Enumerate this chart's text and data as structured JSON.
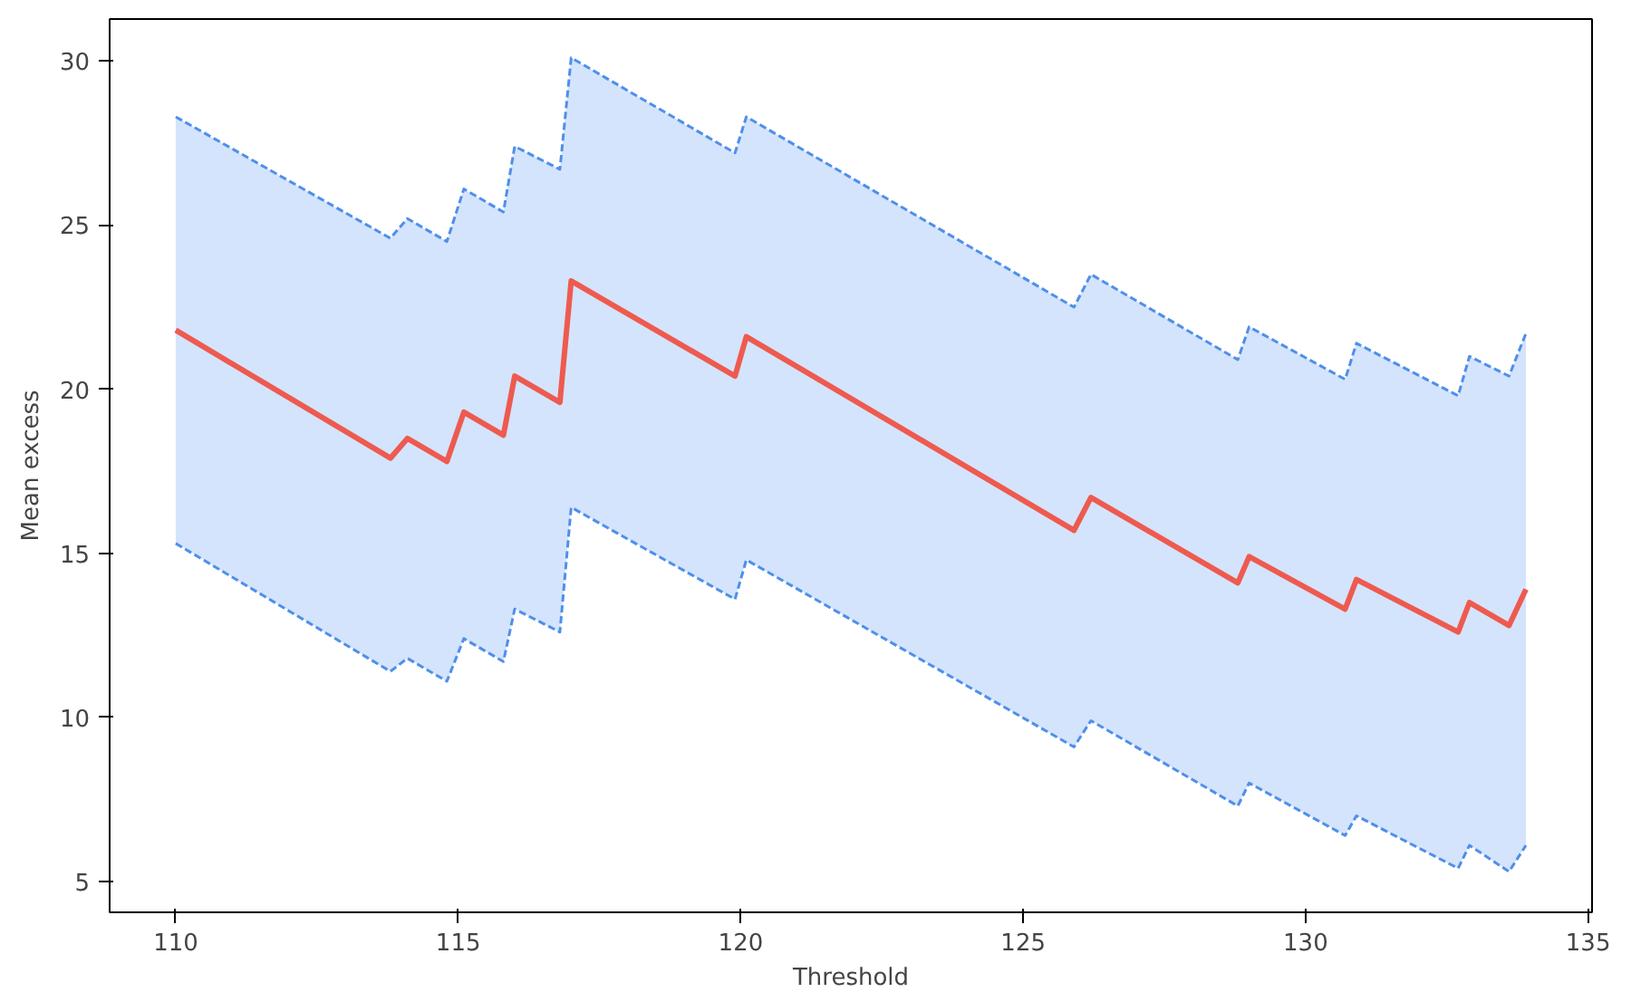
{
  "chart_data": {
    "type": "line",
    "xlabel": "Threshold",
    "ylabel": "Mean excess",
    "xlim": [
      108.83,
      135.07
    ],
    "ylim": [
      4.06,
      31.28
    ],
    "xticks": [
      110,
      115,
      120,
      125,
      130,
      135
    ],
    "yticks": [
      5,
      10,
      15,
      20,
      25,
      30
    ],
    "grid": false,
    "marker": "none",
    "line_style": "solid",
    "series": [
      {
        "color": "#ee5a4f",
        "x": [
          110,
          113.8,
          114.1,
          114.8,
          115.1,
          115.8,
          116.0,
          116.8,
          117.0,
          119.9,
          120.1,
          125.9,
          126.2,
          128.8,
          129.0,
          130.7,
          130.9,
          132.7,
          132.9,
          133.6,
          133.9
        ],
        "values": [
          21.8,
          17.9,
          18.5,
          17.8,
          19.3,
          18.6,
          20.4,
          19.6,
          23.3,
          20.4,
          21.6,
          15.7,
          16.7,
          14.1,
          14.9,
          13.3,
          14.2,
          12.6,
          13.5,
          12.8,
          13.9
        ],
        "upper": [
          28.3,
          24.6,
          25.2,
          24.5,
          26.1,
          25.4,
          27.4,
          26.7,
          30.1,
          27.2,
          28.3,
          22.5,
          23.5,
          20.9,
          21.9,
          20.3,
          21.4,
          19.8,
          21.0,
          20.4,
          21.7
        ],
        "lower": [
          15.3,
          11.4,
          11.8,
          11.1,
          12.4,
          11.7,
          13.3,
          12.6,
          16.4,
          13.6,
          14.8,
          9.1,
          9.9,
          7.3,
          8.0,
          6.4,
          7.0,
          5.4,
          6.1,
          5.3,
          6.1
        ]
      },
      {
        "color": "#4f8fea",
        "line_style": "dashed",
        "x": [
          110,
          113.8,
          114.1,
          114.8,
          115.1,
          115.8,
          116.0,
          116.8,
          117.0,
          119.9,
          120.1,
          125.9,
          126.2,
          128.8,
          129.0,
          130.7,
          130.9,
          132.7,
          132.9,
          133.6,
          133.9
        ],
        "values": [
          28.3,
          24.6,
          25.2,
          24.5,
          26.1,
          25.4,
          27.4,
          26.7,
          30.1,
          27.2,
          28.3,
          22.5,
          23.5,
          20.9,
          21.9,
          20.3,
          21.4,
          19.8,
          21.0,
          20.4,
          21.7
        ]
      },
      {
        "color": "#4f8fea",
        "line_style": "dashed",
        "x": [
          110,
          113.8,
          114.1,
          114.8,
          115.1,
          115.8,
          116.0,
          116.8,
          117.0,
          119.9,
          120.1,
          125.9,
          126.2,
          128.8,
          129.0,
          130.7,
          130.9,
          132.7,
          132.9,
          133.6,
          133.9
        ],
        "values": [
          15.3,
          11.4,
          11.8,
          11.1,
          12.4,
          11.7,
          13.3,
          12.6,
          16.4,
          13.6,
          14.8,
          9.1,
          9.9,
          7.3,
          8.0,
          6.4,
          7.0,
          5.4,
          6.1,
          5.3,
          6.1
        ]
      }
    ]
  }
}
